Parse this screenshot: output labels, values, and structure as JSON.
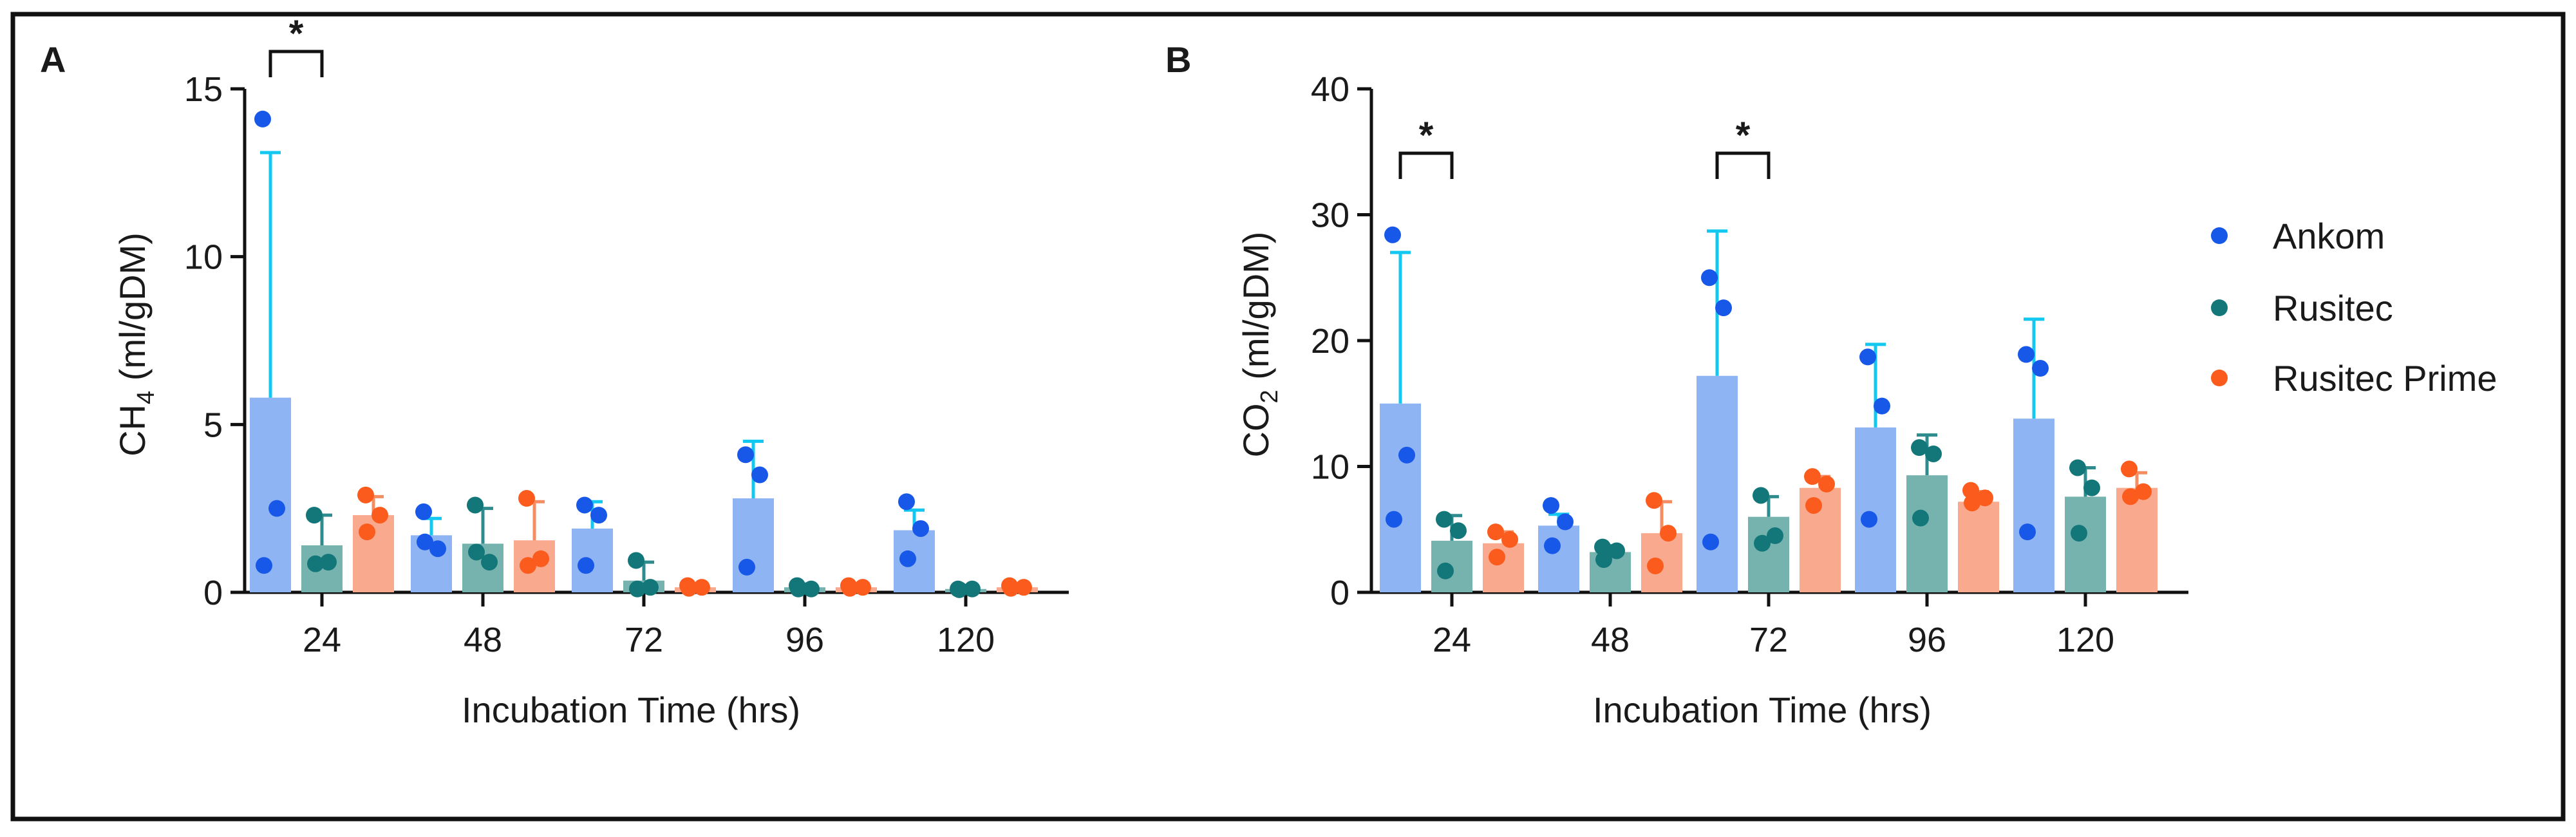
{
  "colors": {
    "Ankom": {
      "bar": "#8fb4f3",
      "dot": "#1858e9",
      "err": "#12c8f0"
    },
    "Rusitec": {
      "bar": "#76b3ae",
      "dot": "#13777a",
      "err": "#2e8c8f"
    },
    "Rusitec Prime": {
      "bar": "#f9a98e",
      "dot": "#fb5c1d",
      "err": "#f58d63"
    }
  },
  "legend": {
    "items": [
      "Ankom",
      "Rusitec",
      "Rusitec Prime"
    ]
  },
  "chart_data": [
    {
      "panel_label": "A",
      "type": "bar",
      "title": "",
      "xlabel": "Incubation Time (hrs)",
      "ylabel_main": "CH",
      "ylabel_sub": "4",
      "ylabel_rest": " (ml/gDM)",
      "ylim": [
        0,
        15
      ],
      "yticks": [
        0,
        5,
        10,
        15
      ],
      "categories": [
        "24",
        "48",
        "72",
        "96",
        "120"
      ],
      "series": [
        {
          "name": "Ankom",
          "values": [
            5.8,
            1.7,
            1.9,
            2.8,
            1.85
          ],
          "err": [
            13.1,
            2.2,
            2.7,
            4.5,
            2.45
          ],
          "points": [
            [
              14.1,
              2.5,
              0.8
            ],
            [
              2.4,
              1.3,
              1.5
            ],
            [
              2.6,
              2.3,
              0.8
            ],
            [
              4.1,
              3.5,
              0.75
            ],
            [
              2.7,
              1.9,
              1.0
            ]
          ]
        },
        {
          "name": "Rusitec",
          "values": [
            1.4,
            1.45,
            0.35,
            0.15,
            0.1
          ],
          "err": [
            2.3,
            2.5,
            0.9,
            0.25,
            0.2
          ],
          "points": [
            [
              2.3,
              0.9,
              0.85
            ],
            [
              2.6,
              0.9,
              1.2
            ],
            [
              0.95,
              0.15,
              0.1
            ],
            [
              0.2,
              0.1,
              0.1
            ],
            [
              0.1,
              0.1,
              0.08
            ]
          ]
        },
        {
          "name": "Rusitec Prime",
          "values": [
            2.3,
            1.55,
            0.15,
            0.15,
            0.15
          ],
          "err": [
            2.85,
            2.7,
            0.2,
            0.2,
            0.2
          ],
          "points": [
            [
              2.9,
              2.3,
              1.8
            ],
            [
              2.8,
              1.0,
              0.8
            ],
            [
              0.2,
              0.15,
              0.12
            ],
            [
              0.2,
              0.15,
              0.12
            ],
            [
              0.2,
              0.15,
              0.12
            ]
          ]
        }
      ],
      "significance": [
        {
          "category": "24",
          "label": "*"
        }
      ]
    },
    {
      "panel_label": "B",
      "type": "bar",
      "title": "",
      "xlabel": "Incubation Time (hrs)",
      "ylabel_main": "CO",
      "ylabel_sub": "2",
      "ylabel_rest": " (ml/gDM)",
      "ylim": [
        0,
        40
      ],
      "yticks": [
        0,
        10,
        20,
        30,
        40
      ],
      "categories": [
        "24",
        "48",
        "72",
        "96",
        "120"
      ],
      "series": [
        {
          "name": "Ankom",
          "values": [
            15.0,
            5.3,
            17.2,
            13.1,
            13.8
          ],
          "err": [
            27.0,
            6.2,
            28.7,
            19.7,
            21.7
          ],
          "points": [
            [
              28.4,
              10.9,
              5.8
            ],
            [
              6.9,
              5.6,
              3.7
            ],
            [
              25.0,
              22.6,
              4.0
            ],
            [
              18.7,
              14.8,
              5.8
            ],
            [
              18.9,
              17.8,
              4.8
            ]
          ]
        },
        {
          "name": "Rusitec",
          "values": [
            4.1,
            3.2,
            6.0,
            9.3,
            7.6
          ],
          "err": [
            6.1,
            3.7,
            7.6,
            12.5,
            9.9
          ],
          "points": [
            [
              5.8,
              4.9,
              1.7
            ],
            [
              3.6,
              3.3,
              2.6
            ],
            [
              7.7,
              4.5,
              3.9
            ],
            [
              11.5,
              11.0,
              5.9
            ],
            [
              9.9,
              8.3,
              4.7
            ]
          ]
        },
        {
          "name": "Rusitec Prime",
          "values": [
            3.9,
            4.7,
            8.3,
            7.2,
            8.3
          ],
          "err": [
            4.8,
            7.2,
            9.2,
            8.0,
            9.5
          ],
          "points": [
            [
              4.8,
              4.2,
              2.8
            ],
            [
              7.3,
              4.7,
              2.1
            ],
            [
              9.2,
              8.6,
              6.9
            ],
            [
              8.1,
              7.5,
              7.1
            ],
            [
              9.8,
              8.0,
              7.6
            ]
          ]
        }
      ],
      "significance": [
        {
          "category": "24",
          "label": "*"
        },
        {
          "category": "72",
          "label": "*"
        }
      ]
    }
  ]
}
